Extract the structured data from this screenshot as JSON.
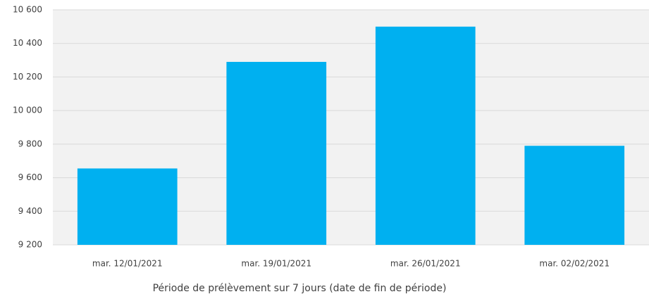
{
  "chart_data": {
    "type": "bar",
    "x_label": "Période de prélèvement sur 7 jours (date de fin de période)",
    "categories": [
      "mar. 12/01/2021",
      "mar. 19/01/2021",
      "mar. 26/01/2021",
      "mar. 02/02/2021"
    ],
    "values": [
      9655,
      10290,
      10500,
      9790
    ],
    "color": "#00b0f0",
    "ylim": [
      9200,
      10600
    ],
    "yticks": [
      {
        "value": 9200,
        "label": "9 200"
      },
      {
        "value": 9400,
        "label": "9 400"
      },
      {
        "value": 9600,
        "label": "9 600"
      },
      {
        "value": 9800,
        "label": "9 800"
      },
      {
        "value": 10000,
        "label": "10 000"
      },
      {
        "value": 10200,
        "label": "10 200"
      },
      {
        "value": 10400,
        "label": "10 400"
      },
      {
        "value": 10600,
        "label": "10 600"
      }
    ],
    "grid": true
  }
}
